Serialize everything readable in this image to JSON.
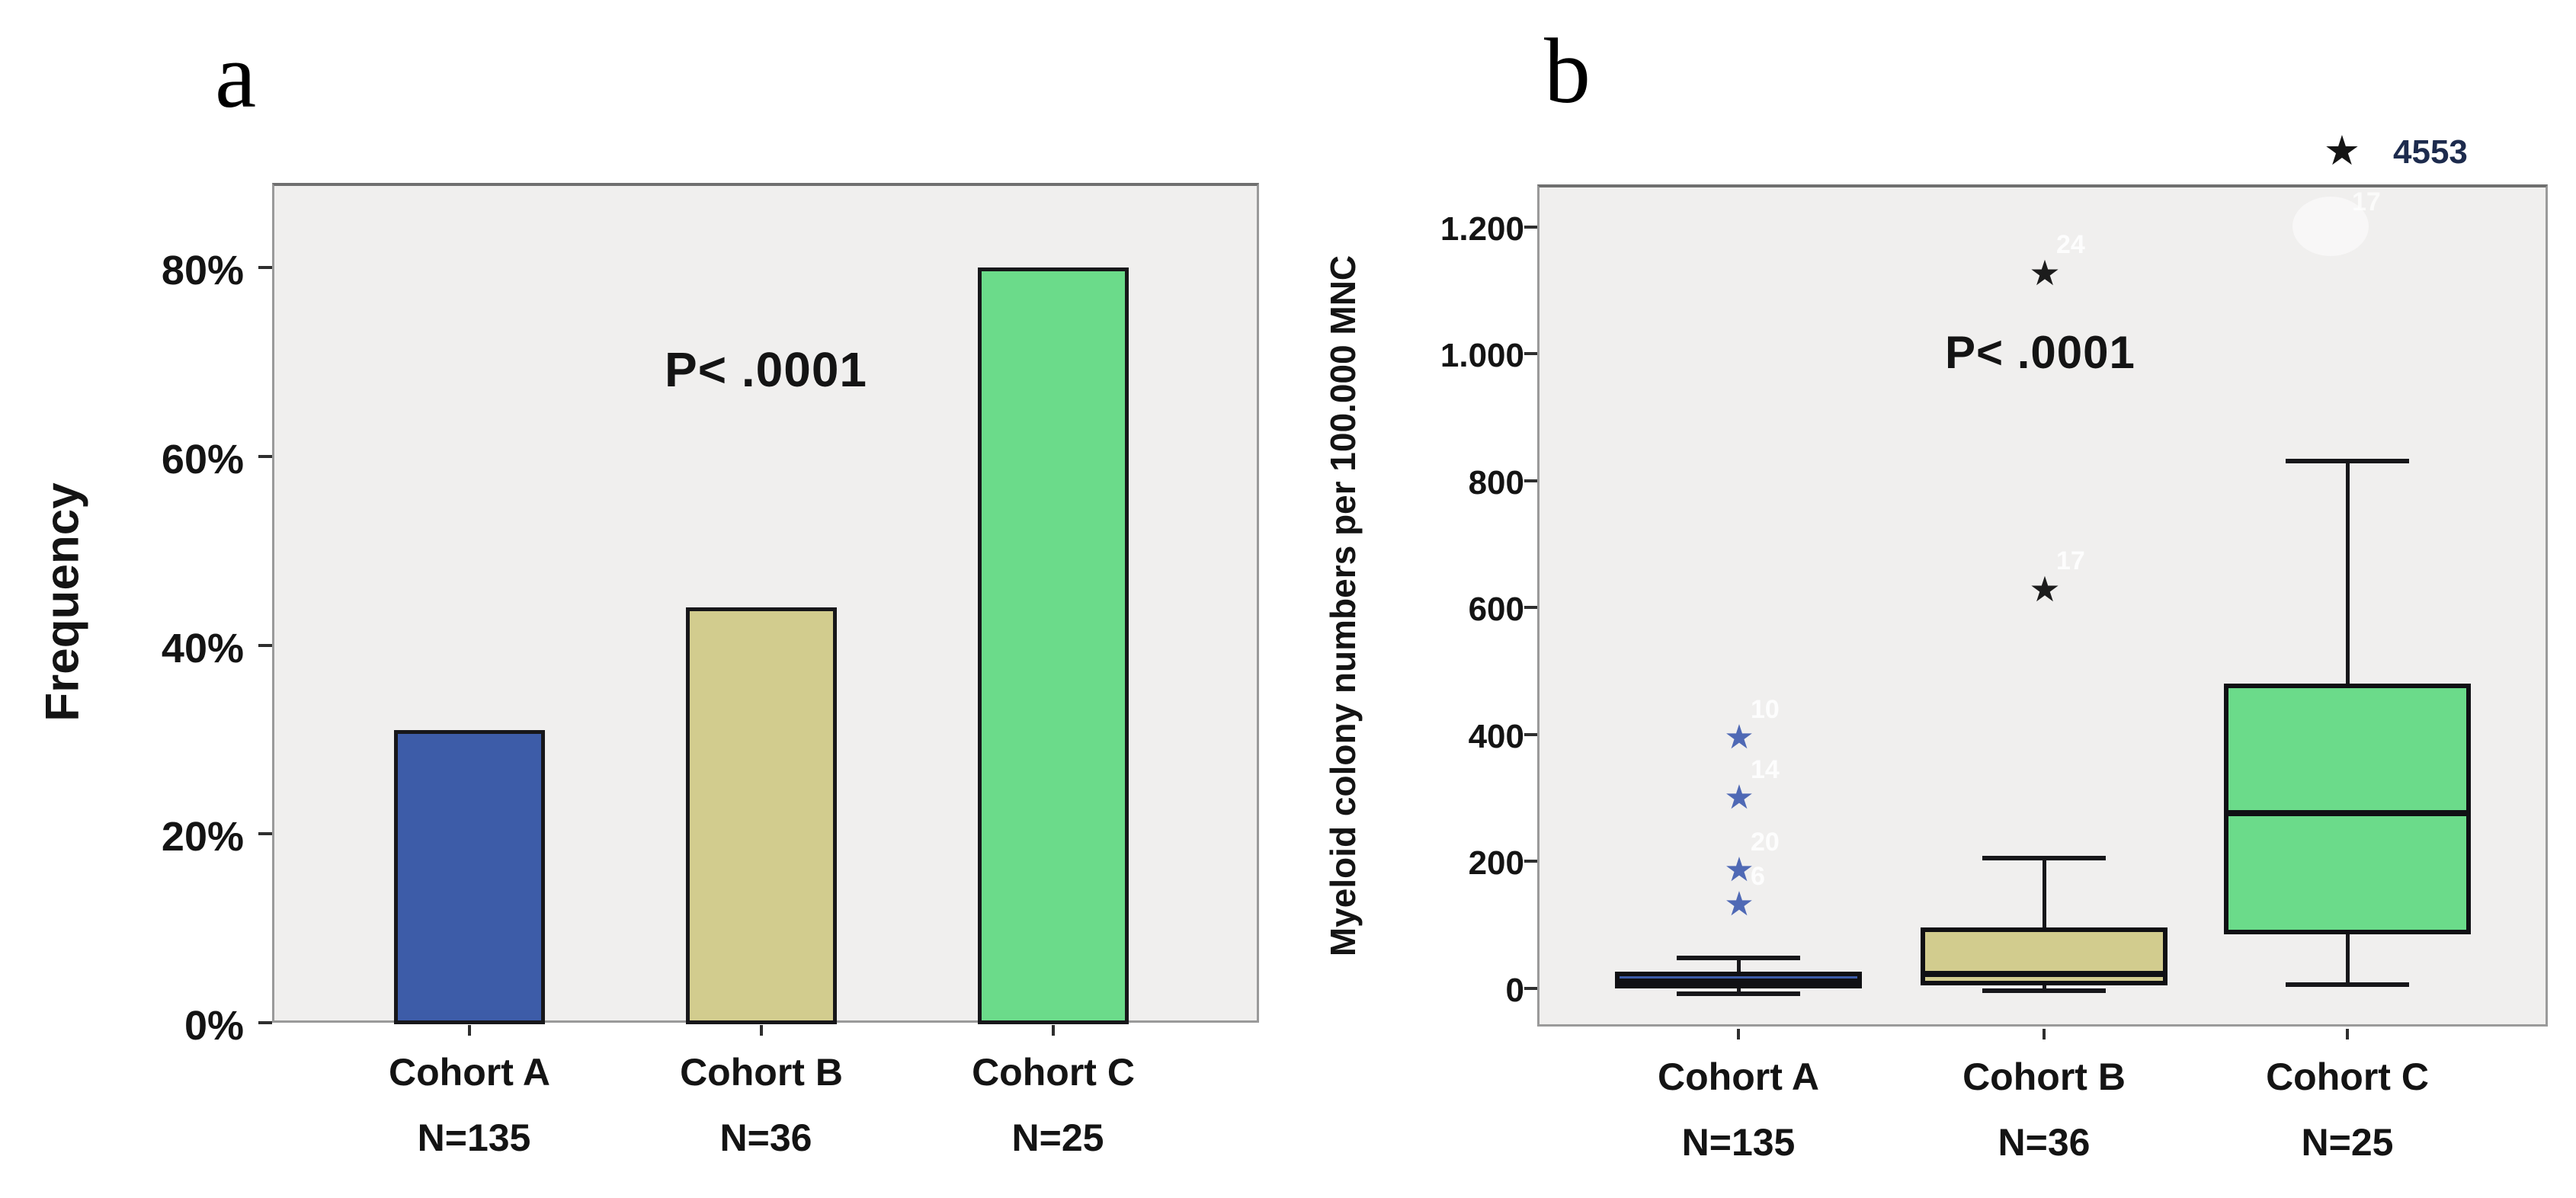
{
  "figure": {
    "panel_a_letter": "a",
    "panel_b_letter": "b",
    "background": "#ffffff",
    "plot_background": "#f0efee"
  },
  "chart_data": [
    {
      "panel": "a",
      "type": "bar",
      "title": "",
      "xlabel": "",
      "ylabel": "Frequency",
      "annotation": "P< .0001",
      "categories": [
        "Cohort A",
        "Cohort B",
        "Cohort C"
      ],
      "n_labels": [
        "N=135",
        "N=36",
        "N=25"
      ],
      "values": [
        31,
        44,
        80
      ],
      "bar_colors": [
        "#3d5ca8",
        "#d2cc8e",
        "#6bdb8a"
      ],
      "ytick_labels": [
        "0%",
        "20%",
        "40%",
        "60%",
        "80%"
      ],
      "ytick_values": [
        0,
        20,
        40,
        60,
        80
      ],
      "ylim": [
        0,
        89
      ],
      "grid": false,
      "legend": "none"
    },
    {
      "panel": "b",
      "type": "box",
      "title": "",
      "xlabel": "",
      "ylabel": "Myeloid colony numbers per 100.000 MNC",
      "annotation": "P< .0001",
      "categories": [
        "Cohort A",
        "Cohort B",
        "Cohort C"
      ],
      "n_labels": [
        "N=135",
        "N=36",
        "N=25"
      ],
      "ytick_labels": [
        "0",
        "200",
        "400",
        "600",
        "800",
        "1.000",
        "1.200"
      ],
      "ytick_values": [
        0,
        200,
        400,
        600,
        800,
        1000,
        1200
      ],
      "ylim": [
        -60,
        1267
      ],
      "grid": false,
      "legend": "none",
      "boxes": [
        {
          "category": "Cohort A",
          "color": "#3d5ca8",
          "q1": 0,
          "median": 11,
          "q3": 26,
          "whisker_low": 0,
          "whisker_high": 48,
          "outlier_color": "#4f69b5",
          "outlier_star": "★",
          "outliers": [
            {
              "value": 132,
              "label": "6"
            },
            {
              "value": 186,
              "label": "20"
            },
            {
              "value": 300,
              "label": "14"
            },
            {
              "value": 395,
              "label": "10"
            }
          ]
        },
        {
          "category": "Cohort B",
          "color": "#d2cc8e",
          "q1": 5,
          "median": 23,
          "q3": 96,
          "whisker_low": 0,
          "whisker_high": 205,
          "outlier_color": "#1c1c1c",
          "outlier_star": "★",
          "outliers": [
            {
              "value": 629,
              "label": "17"
            },
            {
              "value": 1128,
              "label": "24"
            }
          ]
        },
        {
          "category": "Cohort C",
          "color": "#6bdb8a",
          "q1": 85,
          "median": 276,
          "q3": 480,
          "whisker_low": 6,
          "whisker_high": 831,
          "outlier_color": "#1c1c1c",
          "outlier_star": "★",
          "outliers": []
        }
      ],
      "extreme_outlier": {
        "value": 4553,
        "label": "4553",
        "star": "★"
      },
      "ghost_label": "17"
    }
  ]
}
